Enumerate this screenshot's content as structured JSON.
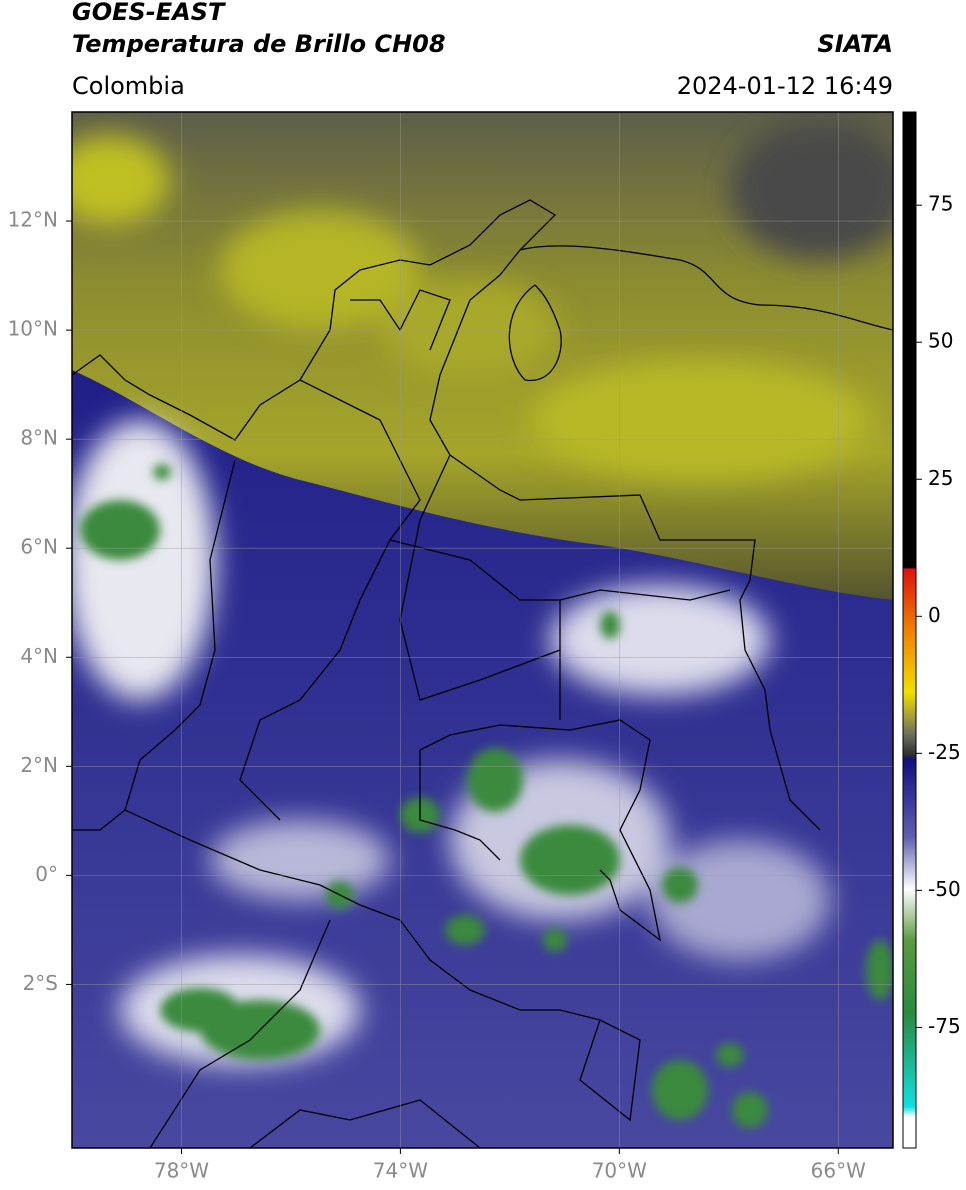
{
  "header": {
    "satellite": "GOES-EAST",
    "product": "Temperatura de Brillo CH08",
    "source": "SIATA",
    "region": "Colombia",
    "datetime": "2024-01-12 16:49"
  },
  "map": {
    "lon_lim": [
      -80,
      -65
    ],
    "lat_lim": [
      -5,
      14
    ],
    "lon_ticks": [
      {
        "value": -78,
        "label": "78°W"
      },
      {
        "value": -74,
        "label": "74°W"
      },
      {
        "value": -70,
        "label": "70°W"
      },
      {
        "value": -66,
        "label": "66°W"
      }
    ],
    "lat_ticks": [
      {
        "value": 12,
        "label": "12°N"
      },
      {
        "value": 10,
        "label": "10°N"
      },
      {
        "value": 8,
        "label": "8°N"
      },
      {
        "value": 6,
        "label": "6°N"
      },
      {
        "value": 4,
        "label": "4°N"
      },
      {
        "value": 2,
        "label": "2°N"
      },
      {
        "value": 0,
        "label": "0°"
      },
      {
        "value": -2,
        "label": "2°S"
      }
    ]
  },
  "colorbar": {
    "lim": [
      -97,
      92
    ],
    "ticks": [
      75,
      50,
      25,
      0,
      -25,
      -50,
      -75
    ]
  }
}
